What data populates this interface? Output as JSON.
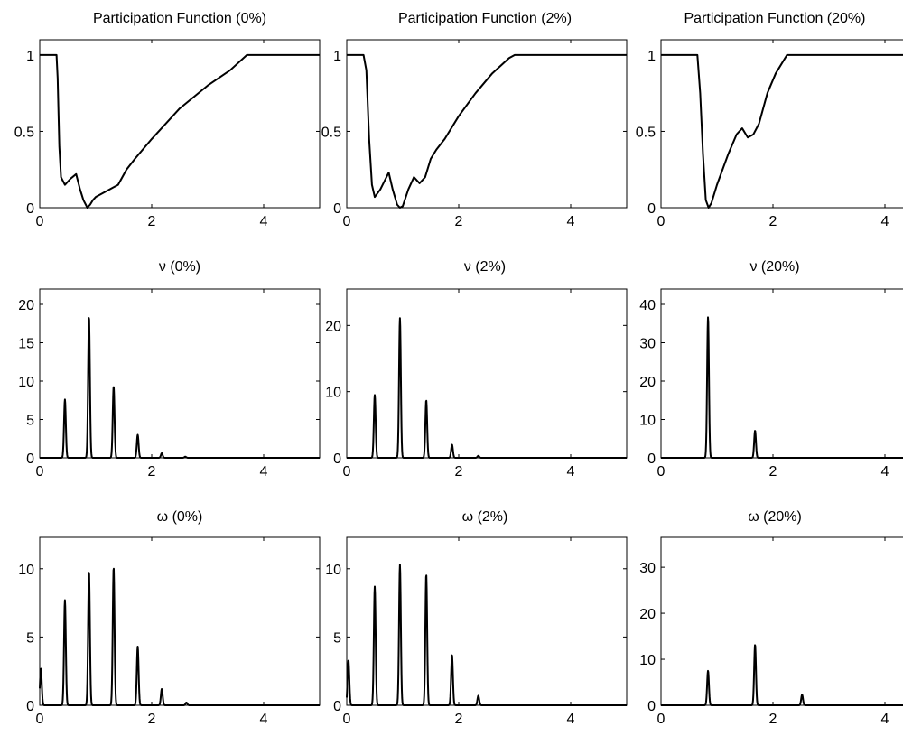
{
  "chart_data": [
    {
      "type": "line",
      "title": "Participation Function (0%)",
      "xlim": [
        0,
        5
      ],
      "ylim": [
        0,
        1.1
      ],
      "xticks": [
        0,
        2,
        4
      ],
      "yticks": [
        0,
        0.5,
        1
      ],
      "x": [
        0,
        0.3,
        0.32,
        0.35,
        0.38,
        0.45,
        0.55,
        0.65,
        0.72,
        0.78,
        0.85,
        0.9,
        0.95,
        1.0,
        1.2,
        1.4,
        1.55,
        1.7,
        2.0,
        2.5,
        3.0,
        3.4,
        3.7,
        5.0
      ],
      "y": [
        1,
        1,
        0.85,
        0.4,
        0.2,
        0.15,
        0.19,
        0.22,
        0.12,
        0.05,
        0.0,
        0.02,
        0.05,
        0.07,
        0.11,
        0.15,
        0.25,
        0.32,
        0.45,
        0.65,
        0.8,
        0.9,
        1.0,
        1.0
      ]
    },
    {
      "type": "line",
      "title": "Participation Function (2%)",
      "xlim": [
        0,
        5
      ],
      "ylim": [
        0,
        1.1
      ],
      "xticks": [
        0,
        2,
        4
      ],
      "yticks": [
        0,
        0.5,
        1
      ],
      "x": [
        0,
        0.3,
        0.35,
        0.4,
        0.45,
        0.5,
        0.6,
        0.75,
        0.82,
        0.9,
        0.95,
        1.0,
        1.1,
        1.2,
        1.3,
        1.4,
        1.5,
        1.6,
        1.75,
        2.0,
        2.3,
        2.6,
        2.9,
        3.0,
        5.0
      ],
      "y": [
        1,
        1,
        0.9,
        0.45,
        0.15,
        0.07,
        0.12,
        0.23,
        0.12,
        0.02,
        0.0,
        0.01,
        0.12,
        0.2,
        0.16,
        0.2,
        0.32,
        0.38,
        0.45,
        0.6,
        0.75,
        0.88,
        0.98,
        1.0,
        1.0
      ]
    },
    {
      "type": "line",
      "title": "Participation Function (20%)",
      "xlim": [
        0,
        5
      ],
      "ylim": [
        0,
        1.1
      ],
      "xticks": [
        0,
        2,
        4
      ],
      "yticks": [
        0,
        0.5,
        1
      ],
      "x": [
        0,
        0.65,
        0.7,
        0.75,
        0.8,
        0.85,
        0.9,
        1.0,
        1.2,
        1.35,
        1.45,
        1.55,
        1.65,
        1.75,
        1.9,
        2.05,
        2.25,
        5.0
      ],
      "y": [
        1,
        1,
        0.75,
        0.35,
        0.05,
        0.0,
        0.03,
        0.15,
        0.35,
        0.48,
        0.52,
        0.46,
        0.48,
        0.55,
        0.75,
        0.88,
        1.0,
        1.0
      ]
    },
    {
      "type": "line",
      "title": "ν (0%)",
      "xlim": [
        0,
        5
      ],
      "ylim": [
        0,
        22
      ],
      "xticks": [
        0,
        2,
        4
      ],
      "yticks": [
        0,
        5,
        10,
        15,
        20
      ],
      "peaks": [
        [
          0.45,
          7.6
        ],
        [
          0.88,
          18.4
        ],
        [
          1.32,
          9.3
        ],
        [
          1.75,
          3.0
        ],
        [
          2.18,
          0.6
        ],
        [
          2.6,
          0.15
        ]
      ]
    },
    {
      "type": "line",
      "title": "ν (2%)",
      "xlim": [
        0,
        5
      ],
      "ylim": [
        0,
        25.5
      ],
      "xticks": [
        0,
        2,
        4
      ],
      "yticks": [
        0,
        10,
        20
      ],
      "peaks": [
        [
          0.5,
          9.5
        ],
        [
          0.95,
          21.1
        ],
        [
          1.42,
          8.7
        ],
        [
          1.88,
          2.0
        ],
        [
          2.35,
          0.3
        ]
      ]
    },
    {
      "type": "line",
      "title": "ν (20%)",
      "xlim": [
        0,
        5
      ],
      "ylim": [
        0,
        44
      ],
      "xticks": [
        0,
        2,
        4
      ],
      "yticks": [
        0,
        10,
        20,
        30,
        40
      ],
      "peaks": [
        [
          0.84,
          36.7
        ],
        [
          1.68,
          7.1
        ]
      ]
    },
    {
      "type": "line",
      "title": "ω (0%)",
      "xlim": [
        0,
        5
      ],
      "ylim": [
        0,
        12.3
      ],
      "xticks": [
        0,
        2,
        4
      ],
      "yticks": [
        0,
        5,
        10
      ],
      "peaks": [
        [
          0.02,
          2.7
        ],
        [
          0.45,
          7.7
        ],
        [
          0.88,
          9.8
        ],
        [
          1.32,
          10.1
        ],
        [
          1.75,
          4.3
        ],
        [
          2.18,
          1.2
        ],
        [
          2.62,
          0.2
        ]
      ]
    },
    {
      "type": "line",
      "title": "ω (2%)",
      "xlim": [
        0,
        5
      ],
      "ylim": [
        0,
        12.3
      ],
      "xticks": [
        0,
        2,
        4
      ],
      "yticks": [
        0,
        5,
        10
      ],
      "peaks": [
        [
          0.03,
          3.3
        ],
        [
          0.5,
          8.7
        ],
        [
          0.95,
          10.3
        ],
        [
          1.42,
          9.6
        ],
        [
          1.88,
          3.7
        ],
        [
          2.35,
          0.7
        ]
      ]
    },
    {
      "type": "line",
      "title": "ω (20%)",
      "xlim": [
        0,
        5
      ],
      "ylim": [
        0,
        36.5
      ],
      "xticks": [
        0,
        2,
        4
      ],
      "yticks": [
        0,
        10,
        20,
        30
      ],
      "peaks": [
        [
          0.84,
          7.5
        ],
        [
          1.68,
          13.2
        ],
        [
          2.52,
          2.3
        ]
      ]
    }
  ]
}
